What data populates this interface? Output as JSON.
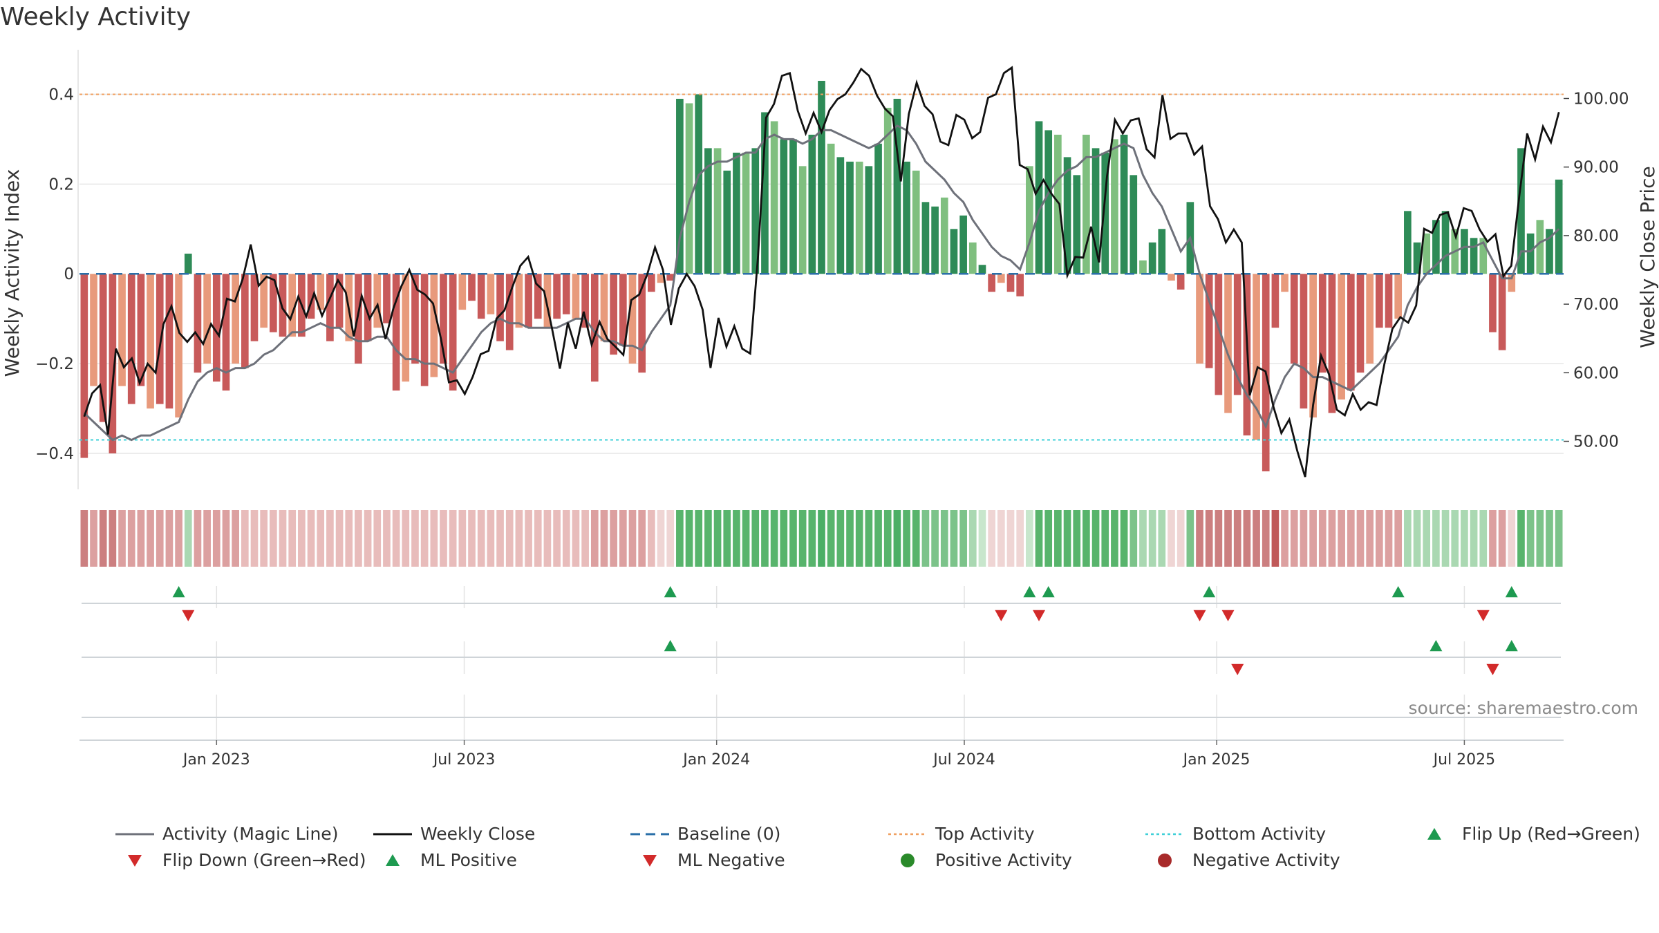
{
  "chart_data": {
    "type": "bar",
    "title": "Weekly Activity",
    "ylabel_left": "Weekly Activity Index",
    "ylabel_right": "Weekly Close Price",
    "left_ticks": [
      "0.4",
      "0.2",
      "0",
      "−0.2",
      "−0.4"
    ],
    "left_tick_values": [
      0.4,
      0.2,
      0,
      -0.2,
      -0.4
    ],
    "right_ticks": [
      "100.00",
      "90.00",
      "80.00",
      "70.00",
      "60.00",
      "50.00"
    ],
    "right_tick_values": [
      100,
      90,
      80,
      70,
      60,
      50
    ],
    "ylim_left": [
      -0.48,
      0.49
    ],
    "ylim_right": [
      43.0,
      106.5
    ],
    "top_activity": 0.4,
    "bottom_activity": -0.37,
    "x_ticks": [
      "Jan 2023",
      "Jul 2023",
      "Jan 2024",
      "Jul 2024",
      "Jan 2025",
      "Jul 2025"
    ],
    "x_tick_weeks": [
      14.5,
      40.7,
      67.4,
      93.6,
      120.3,
      146.5
    ],
    "activity": [
      -0.41,
      -0.25,
      -0.33,
      -0.4,
      -0.25,
      -0.29,
      -0.25,
      -0.3,
      -0.29,
      -0.3,
      -0.32,
      0.045,
      -0.22,
      -0.2,
      -0.24,
      -0.26,
      -0.2,
      -0.21,
      -0.15,
      -0.12,
      -0.13,
      -0.14,
      -0.14,
      -0.14,
      -0.1,
      -0.08,
      -0.15,
      -0.12,
      -0.15,
      -0.2,
      -0.15,
      -0.12,
      -0.11,
      -0.26,
      -0.24,
      -0.2,
      -0.25,
      -0.23,
      -0.2,
      -0.26,
      -0.08,
      -0.06,
      -0.1,
      -0.09,
      -0.15,
      -0.17,
      -0.12,
      -0.12,
      -0.1,
      -0.12,
      -0.1,
      -0.09,
      -0.1,
      -0.12,
      -0.24,
      -0.15,
      -0.18,
      -0.16,
      -0.2,
      -0.22,
      -0.04,
      -0.02,
      -0.015,
      0.39,
      0.38,
      0.4,
      0.28,
      0.28,
      0.23,
      0.27,
      0.27,
      0.28,
      0.36,
      0.34,
      0.3,
      0.3,
      0.24,
      0.31,
      0.43,
      0.29,
      0.26,
      0.25,
      0.25,
      0.24,
      0.29,
      0.37,
      0.39,
      0.25,
      0.23,
      0.16,
      0.15,
      0.17,
      0.1,
      0.13,
      0.07,
      0.02,
      -0.04,
      -0.02,
      -0.04,
      -0.05,
      0.24,
      0.34,
      0.32,
      0.31,
      0.26,
      0.22,
      0.31,
      0.28,
      0.27,
      0.3,
      0.31,
      0.22,
      0.03,
      0.07,
      0.1,
      -0.015,
      -0.035,
      0.16,
      -0.2,
      -0.21,
      -0.27,
      -0.31,
      -0.27,
      -0.36,
      -0.37,
      -0.44,
      -0.12,
      -0.04,
      -0.2,
      -0.3,
      -0.32,
      -0.22,
      -0.31,
      -0.28,
      -0.26,
      -0.22,
      -0.2,
      -0.12,
      -0.12,
      -0.1,
      0.14,
      0.07,
      0.09,
      0.12,
      0.14,
      0.1,
      0.1,
      0.08,
      0.08,
      -0.13,
      -0.17,
      -0.04,
      0.28,
      0.09,
      0.12,
      0.1,
      0.21
    ],
    "weekly_close": [
      53.6,
      57.0,
      58.2,
      51.0,
      63.5,
      60.8,
      62.1,
      58.5,
      61.3,
      60.0,
      67.1,
      69.7,
      65.8,
      64.5,
      65.9,
      64.2,
      67.1,
      65.4,
      70.8,
      70.4,
      73.7,
      78.7,
      72.7,
      74.0,
      73.5,
      69.4,
      67.8,
      71.1,
      68.2,
      71.6,
      68.3,
      70.9,
      73.5,
      71.7,
      65.3,
      71.2,
      67.9,
      69.9,
      64.9,
      69.4,
      72.6,
      75.0,
      72.1,
      71.4,
      70.1,
      64.9,
      58.6,
      58.9,
      56.9,
      59.4,
      62.7,
      63.2,
      67.9,
      69.1,
      72.5,
      75.6,
      76.9,
      73.0,
      71.9,
      66.5,
      60.6,
      67.3,
      63.5,
      68.9,
      64.1,
      67.4,
      64.9,
      63.8,
      62.6,
      70.6,
      71.4,
      74.3,
      78.3,
      75.0,
      67.0,
      72.3,
      74.4,
      72.6,
      69.2,
      60.7,
      68.0,
      63.8,
      66.8,
      63.5,
      62.8,
      77.1,
      97.2,
      99.2,
      103.3,
      103.7,
      98.2,
      94.9,
      97.9,
      95.1,
      98.3,
      99.9,
      100.6,
      102.3,
      104.3,
      103.3,
      100.4,
      98.5,
      97.4,
      87.9,
      97.7,
      102.3,
      98.9,
      97.7,
      93.7,
      93.2,
      97.6,
      96.9,
      94.2,
      95.1,
      100.1,
      100.6,
      103.7,
      104.5,
      90.3,
      89.7,
      86.1,
      88.1,
      86.1,
      84.6,
      74.2,
      76.9,
      76.8,
      81.3,
      76.1,
      88.6,
      96.9,
      94.9,
      96.8,
      97.1,
      92.6,
      91.4,
      100.5,
      94.1,
      94.9,
      94.9,
      91.8,
      93.0,
      84.3,
      82.4,
      79.0,
      80.9,
      79.0,
      56.7,
      60.8,
      60.2,
      55.0,
      51.2,
      53.2,
      48.6,
      44.8,
      55.3,
      62.5,
      59.8,
      54.6,
      53.8,
      56.9,
      54.6,
      55.7,
      55.3,
      61.3,
      66.4,
      68.1,
      67.3,
      69.8,
      81.0,
      80.4,
      83.0,
      83.4,
      79.8,
      84.0,
      83.6,
      80.9,
      79.1,
      80.2,
      74.1,
      75.6,
      85.7,
      94.9,
      91.1,
      95.9,
      93.6,
      98.0
    ],
    "magic_line": [
      -0.31,
      -0.33,
      -0.35,
      -0.37,
      -0.36,
      -0.37,
      -0.36,
      -0.36,
      -0.35,
      -0.34,
      -0.33,
      -0.28,
      -0.24,
      -0.22,
      -0.21,
      -0.22,
      -0.21,
      -0.21,
      -0.2,
      -0.18,
      -0.17,
      -0.15,
      -0.13,
      -0.13,
      -0.12,
      -0.11,
      -0.12,
      -0.12,
      -0.14,
      -0.15,
      -0.15,
      -0.14,
      -0.14,
      -0.17,
      -0.19,
      -0.19,
      -0.2,
      -0.2,
      -0.21,
      -0.22,
      -0.19,
      -0.16,
      -0.13,
      -0.11,
      -0.1,
      -0.11,
      -0.11,
      -0.12,
      -0.12,
      -0.12,
      -0.12,
      -0.11,
      -0.1,
      -0.1,
      -0.13,
      -0.15,
      -0.15,
      -0.16,
      -0.16,
      -0.17,
      -0.13,
      -0.1,
      -0.07,
      0.08,
      0.16,
      0.22,
      0.24,
      0.25,
      0.25,
      0.26,
      0.27,
      0.27,
      0.3,
      0.31,
      0.3,
      0.3,
      0.29,
      0.3,
      0.32,
      0.32,
      0.31,
      0.3,
      0.29,
      0.28,
      0.29,
      0.31,
      0.33,
      0.32,
      0.29,
      0.25,
      0.23,
      0.21,
      0.18,
      0.16,
      0.12,
      0.09,
      0.06,
      0.04,
      0.03,
      0.01,
      0.07,
      0.14,
      0.18,
      0.21,
      0.23,
      0.24,
      0.26,
      0.26,
      0.27,
      0.28,
      0.29,
      0.28,
      0.22,
      0.18,
      0.15,
      0.1,
      0.05,
      0.08,
      0.0,
      -0.06,
      -0.12,
      -0.18,
      -0.23,
      -0.27,
      -0.3,
      -0.34,
      -0.28,
      -0.23,
      -0.2,
      -0.21,
      -0.23,
      -0.23,
      -0.24,
      -0.25,
      -0.26,
      -0.24,
      -0.22,
      -0.2,
      -0.17,
      -0.14,
      -0.07,
      -0.03,
      0.0,
      0.02,
      0.04,
      0.05,
      0.06,
      0.06,
      0.07,
      0.03,
      -0.01,
      -0.01,
      0.05,
      0.05,
      0.07,
      0.08,
      0.1
    ],
    "heat_strip": [
      "r3",
      "r2",
      "r3",
      "r3",
      "r2",
      "r2",
      "r2",
      "r2",
      "r2",
      "r2",
      "r2",
      "g4",
      "r2",
      "r2",
      "r2",
      "r2",
      "r2",
      "r1",
      "r1",
      "r1",
      "r1",
      "r1",
      "r1",
      "r1",
      "r1",
      "r1",
      "r1",
      "r1",
      "r1",
      "r1",
      "r1",
      "r1",
      "r1",
      "r1",
      "r1",
      "r1",
      "r1",
      "r1",
      "r1",
      "r1",
      "r1",
      "r1",
      "r1",
      "r1",
      "r1",
      "r1",
      "r1",
      "r1",
      "r1",
      "r1",
      "r1",
      "r1",
      "r1",
      "r1",
      "r2",
      "r2",
      "r2",
      "r2",
      "r2",
      "r2",
      "r1",
      "r0",
      "r0",
      "g2",
      "g2",
      "g2",
      "g2",
      "g2",
      "g2",
      "g2",
      "g2",
      "g2",
      "g2",
      "g2",
      "g2",
      "g2",
      "g2",
      "g2",
      "g1",
      "g2",
      "g2",
      "g2",
      "g2",
      "g2",
      "g2",
      "g2",
      "g1",
      "g2",
      "g2",
      "g3",
      "g3",
      "g3",
      "g3",
      "g3",
      "g4",
      "g5",
      "r0",
      "r0",
      "r0",
      "r0",
      "g5",
      "g2",
      "g2",
      "g2",
      "g2",
      "g2",
      "g2",
      "g2",
      "g2",
      "g2",
      "g2",
      "g3",
      "g4",
      "g4",
      "g4",
      "r0",
      "r0",
      "g3",
      "r3",
      "r3",
      "r3",
      "r3",
      "r3",
      "r3",
      "r3",
      "r3",
      "r4",
      "r2",
      "r2",
      "r2",
      "r2",
      "r2",
      "r2",
      "r2",
      "r2",
      "r2",
      "r2",
      "r2",
      "r2",
      "r2",
      "g4",
      "g4",
      "g4",
      "g4",
      "g4",
      "g4",
      "g4",
      "g4",
      "g4",
      "r2",
      "r2",
      "r0",
      "g2",
      "g3",
      "g3",
      "g3",
      "g3"
    ],
    "flip_up_weeks": [
      10,
      62,
      100,
      102,
      119,
      139,
      151
    ],
    "flip_down_weeks": [
      11,
      97,
      101,
      118,
      121,
      148
    ],
    "ml_positive_weeks": [
      62,
      143,
      151
    ],
    "ml_negative_weeks": [
      122,
      149
    ],
    "source": "source: sharemaestro.com",
    "legend": [
      {
        "label": "Activity (Magic Line)",
        "kind": "line",
        "color": "#6e717a"
      },
      {
        "label": "Weekly Close",
        "kind": "line",
        "color": "#111111"
      },
      {
        "label": "Baseline (0)",
        "kind": "dash",
        "color": "#2a6fa8"
      },
      {
        "label": "Top Activity",
        "kind": "dot",
        "color": "#f0a060"
      },
      {
        "label": "Bottom Activity",
        "kind": "dot",
        "color": "#3fd0d8"
      },
      {
        "label": "Flip Up (Red→Green)",
        "kind": "tri-up",
        "color": "#1e9a50"
      },
      {
        "label": "Flip Down (Green→Red)",
        "kind": "tri-down",
        "color": "#d22a2a"
      },
      {
        "label": "ML Positive",
        "kind": "tri-up",
        "color": "#1e9a50"
      },
      {
        "label": "ML Negative",
        "kind": "tri-down",
        "color": "#d22a2a"
      },
      {
        "label": "Positive Activity",
        "kind": "circle",
        "color": "#2a8a2a"
      },
      {
        "label": "Negative Activity",
        "kind": "circle",
        "color": "#a82a2a"
      }
    ]
  }
}
